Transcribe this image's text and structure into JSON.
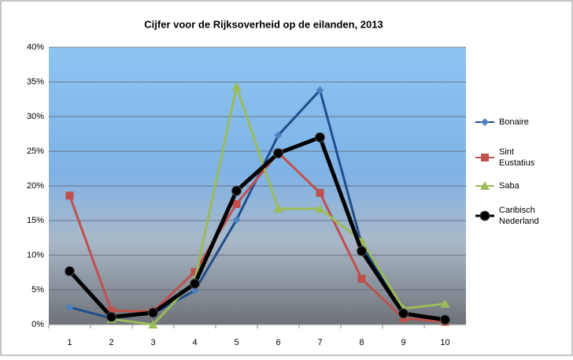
{
  "chart_data": {
    "type": "line",
    "title": "Cijfer voor de Rijksoverheid op de eilanden, 2013",
    "categories": [
      "1",
      "2",
      "3",
      "4",
      "5",
      "6",
      "7",
      "8",
      "9",
      "10"
    ],
    "series": [
      {
        "name": "Bonaire",
        "color": "#1f4e8c",
        "marker": "diamond",
        "marker_color": "#4f81bd",
        "values": [
          2.5,
          0.9,
          1.6,
          4.9,
          15.1,
          27.3,
          33.8,
          11.6,
          1.5,
          0.5
        ]
      },
      {
        "name": "Sint Eustatius",
        "color": "#c0504d",
        "marker": "square",
        "marker_color": "#c0504d",
        "values": [
          18.6,
          2.0,
          1.9,
          7.6,
          17.4,
          24.8,
          19.0,
          6.6,
          0.9,
          0.4
        ]
      },
      {
        "name": "Saba",
        "color": "#9bbb59",
        "marker": "triangle",
        "marker_color": "#9bbb59",
        "values": [
          null,
          0.8,
          0.0,
          6.4,
          34.3,
          16.7,
          16.7,
          12.1,
          2.3,
          3.0
        ]
      },
      {
        "name": "Caribisch Nederland",
        "color": "#000000",
        "marker": "circle",
        "marker_color": "#000000",
        "values": [
          7.7,
          1.1,
          1.7,
          5.9,
          19.3,
          24.7,
          27.0,
          10.6,
          1.6,
          0.7
        ]
      }
    ],
    "ylim": [
      0,
      40
    ],
    "yticks": [
      {
        "value": 0,
        "label": "0%"
      },
      {
        "value": 5,
        "label": "5%"
      },
      {
        "value": 10,
        "label": "10%"
      },
      {
        "value": 15,
        "label": "15%"
      },
      {
        "value": 20,
        "label": "20%"
      },
      {
        "value": 25,
        "label": "25%"
      },
      {
        "value": 30,
        "label": "30%"
      },
      {
        "value": 35,
        "label": "35%"
      },
      {
        "value": 40,
        "label": "40%"
      }
    ],
    "grid": true,
    "legend": "right"
  }
}
